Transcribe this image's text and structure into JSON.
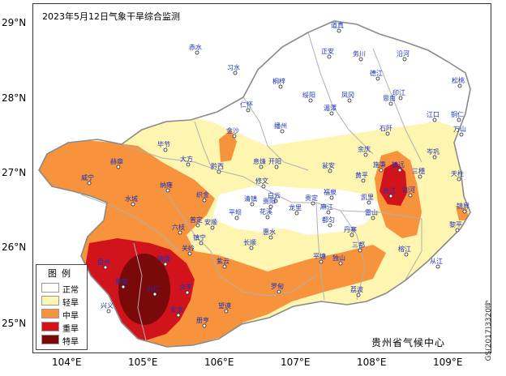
{
  "map": {
    "title": "2023年5月12日气象干旱综合监测",
    "lat_labels": [
      "29°N",
      "28°N",
      "27°N",
      "26°N",
      "25°N"
    ],
    "lon_labels": [
      "104°E",
      "105°E",
      "106°E",
      "107°E",
      "108°E",
      "109°E"
    ],
    "credit": "GS(2017)3320号",
    "agency": "贵州省气候中心",
    "colors": {
      "normal": "#ffffff",
      "light": "#fdf5b0",
      "moderate": "#f7923d",
      "severe": "#d1141b",
      "extreme": "#7a0a0a",
      "water": "#ffffff"
    },
    "legend": {
      "title": "图例",
      "items": [
        {
          "label": "正常",
          "color": "#ffffff"
        },
        {
          "label": "轻旱",
          "color": "#fdf5b0"
        },
        {
          "label": "中旱",
          "color": "#f7923d"
        },
        {
          "label": "重旱",
          "color": "#d1141b"
        },
        {
          "label": "特旱",
          "color": "#7a0a0a"
        }
      ]
    },
    "places": [
      {
        "name": "道真"
      },
      {
        "name": "赤水"
      },
      {
        "name": "正安"
      },
      {
        "name": "务川"
      },
      {
        "name": "沿河"
      },
      {
        "name": "习水"
      },
      {
        "name": "桐梓"
      },
      {
        "name": "德江"
      },
      {
        "name": "松桃"
      },
      {
        "name": "绥阳"
      },
      {
        "name": "凤冈"
      },
      {
        "name": "印江"
      },
      {
        "name": "湄潭"
      },
      {
        "name": "思南"
      },
      {
        "name": "江口"
      },
      {
        "name": "铜仁"
      },
      {
        "name": "仁怀"
      },
      {
        "name": "万山"
      },
      {
        "name": "播州"
      },
      {
        "name": "石阡"
      },
      {
        "name": "金沙"
      },
      {
        "name": "毕节"
      },
      {
        "name": "余庆"
      },
      {
        "name": "岑巩"
      },
      {
        "name": "大方"
      },
      {
        "name": "黔西"
      },
      {
        "name": "息烽"
      },
      {
        "name": "开阳"
      },
      {
        "name": "瓮安"
      },
      {
        "name": "施秉"
      },
      {
        "name": "镇远"
      },
      {
        "name": "三穗"
      },
      {
        "name": "天柱"
      },
      {
        "name": "赫章"
      },
      {
        "name": "修文"
      },
      {
        "name": "黄平"
      },
      {
        "name": "剑河"
      },
      {
        "name": "威宁"
      },
      {
        "name": "纳雍"
      },
      {
        "name": "织金"
      },
      {
        "name": "白云"
      },
      {
        "name": "清镇"
      },
      {
        "name": "贵阳"
      },
      {
        "name": "龙里"
      },
      {
        "name": "贵定"
      },
      {
        "name": "福泉"
      },
      {
        "name": "凯里"
      },
      {
        "name": "台江"
      },
      {
        "name": "锦屏"
      },
      {
        "name": "麻江"
      },
      {
        "name": "雷山"
      },
      {
        "name": "水城"
      },
      {
        "name": "平坝"
      },
      {
        "name": "花溪"
      },
      {
        "name": "六枝"
      },
      {
        "name": "普定"
      },
      {
        "name": "安顺"
      },
      {
        "name": "惠水"
      },
      {
        "name": "丹寨"
      },
      {
        "name": "黎平"
      },
      {
        "name": "镇宁"
      },
      {
        "name": "长顺"
      },
      {
        "name": "都匀"
      },
      {
        "name": "三都"
      },
      {
        "name": "榕江"
      },
      {
        "name": "关岭"
      },
      {
        "name": "紫云"
      },
      {
        "name": "平塘"
      },
      {
        "name": "独山"
      },
      {
        "name": "从江"
      },
      {
        "name": "盘州"
      },
      {
        "name": "晴隆"
      },
      {
        "name": "普安"
      },
      {
        "name": "贞丰"
      },
      {
        "name": "望谟"
      },
      {
        "name": "罗甸"
      },
      {
        "name": "荔波"
      },
      {
        "name": "兴仁"
      },
      {
        "name": "兴义"
      },
      {
        "name": "安龙"
      },
      {
        "name": "册亨"
      }
    ]
  }
}
